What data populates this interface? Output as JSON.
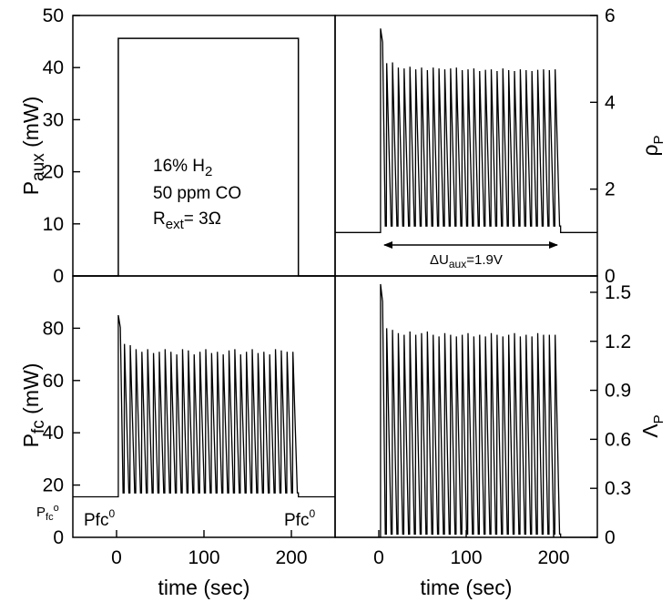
{
  "chart_data": [
    {
      "panel": "top-left",
      "type": "line",
      "ylabel": "P",
      "ylabel_sub": "aux",
      "ylabel_unit": " (mW)",
      "xlim": [
        -50,
        250
      ],
      "ylim": [
        0,
        50
      ],
      "yticks": [
        0,
        10,
        20,
        30,
        40,
        50
      ],
      "annotations": {
        "line1": "16% H",
        "line1_sub": "2",
        "line2": "50 ppm CO",
        "line3a": "R",
        "line3_sub": "ext",
        "line3b": "= 3Ω"
      },
      "series": [
        {
          "x": [
            -50,
            2,
            2,
            208,
            208,
            250
          ],
          "y": [
            0,
            0,
            45.6,
            45.6,
            0,
            0
          ]
        }
      ]
    },
    {
      "panel": "top-right",
      "type": "line",
      "ylabel": "ρ",
      "ylabel_sub": "P",
      "xlim": [
        -50,
        250
      ],
      "ylim": [
        0,
        6
      ],
      "yticks": [
        0,
        2,
        4,
        6
      ],
      "annotations": {
        "arrow_pre": "ΔU",
        "arrow_sub": "aux",
        "arrow_post": "=1.9V"
      },
      "pulse_train": {
        "baseline": 1.0,
        "start": 2,
        "end": 208,
        "first_peak": 5.7,
        "typical_low": 1.15,
        "peaks": [
          5.7,
          4.9,
          4.92,
          4.8,
          4.78,
          4.82,
          4.76,
          4.8,
          4.74,
          4.8,
          4.78,
          4.76,
          4.78,
          4.8,
          4.74,
          4.76,
          4.78,
          4.72,
          4.75,
          4.76,
          4.72,
          4.78,
          4.74,
          4.72,
          4.76,
          4.74,
          4.72,
          4.75,
          4.76,
          4.74,
          4.76
        ],
        "pulse_count": 31
      }
    },
    {
      "panel": "bottom-left",
      "type": "line",
      "ylabel": "P",
      "ylabel_sub": "fc",
      "ylabel_unit": " (mW)",
      "xlim": [
        -50,
        250
      ],
      "ylim": [
        0,
        100
      ],
      "yticks": [
        20,
        40,
        60,
        80
      ],
      "ytick_zero": "0",
      "xlabel": "time (sec)",
      "xticks": [
        0,
        100,
        200
      ],
      "annotations": {
        "pfc_axis_main": "P",
        "pfc_axis_sub": "fc",
        "pfc_axis_sup": "o",
        "left_main": "Pfc",
        "left_sup": "0",
        "right_main": "Pfc",
        "right_sup": "0"
      },
      "pulse_train": {
        "baseline": 15.5,
        "start": 2,
        "end": 208,
        "first_peak": 85,
        "typical_low": 17,
        "peaks": [
          85,
          74,
          73.5,
          72,
          71,
          72,
          70.5,
          71,
          72,
          71,
          70,
          72,
          71.5,
          70,
          71,
          72,
          70.5,
          71,
          70,
          71.5,
          72,
          70,
          71,
          72,
          70.5,
          71,
          70,
          72,
          71.5,
          71,
          71
        ],
        "pulse_count": 31
      }
    },
    {
      "panel": "bottom-right",
      "type": "line",
      "ylabel": "Λ",
      "ylabel_sub": "P",
      "xlim": [
        -50,
        250
      ],
      "ylim": [
        0,
        1.6
      ],
      "yticks": [
        "0",
        "0.3",
        "0.6",
        "0.9",
        "1.2",
        "1.5"
      ],
      "ytick_values": [
        0,
        0.3,
        0.6,
        0.9,
        1.2,
        1.5
      ],
      "xlabel": "time (sec)",
      "xticks": [
        0,
        100,
        200
      ],
      "pulse_train": {
        "baseline": 0,
        "start": 2,
        "end": 208,
        "first_peak": 1.55,
        "typical_low": 0.02,
        "peaks": [
          1.55,
          1.28,
          1.27,
          1.25,
          1.24,
          1.26,
          1.24,
          1.25,
          1.26,
          1.24,
          1.23,
          1.25,
          1.24,
          1.23,
          1.24,
          1.25,
          1.23,
          1.24,
          1.23,
          1.25,
          1.24,
          1.23,
          1.24,
          1.25,
          1.23,
          1.24,
          1.23,
          1.25,
          1.24,
          1.24,
          1.24
        ],
        "pulse_count": 31
      }
    }
  ]
}
